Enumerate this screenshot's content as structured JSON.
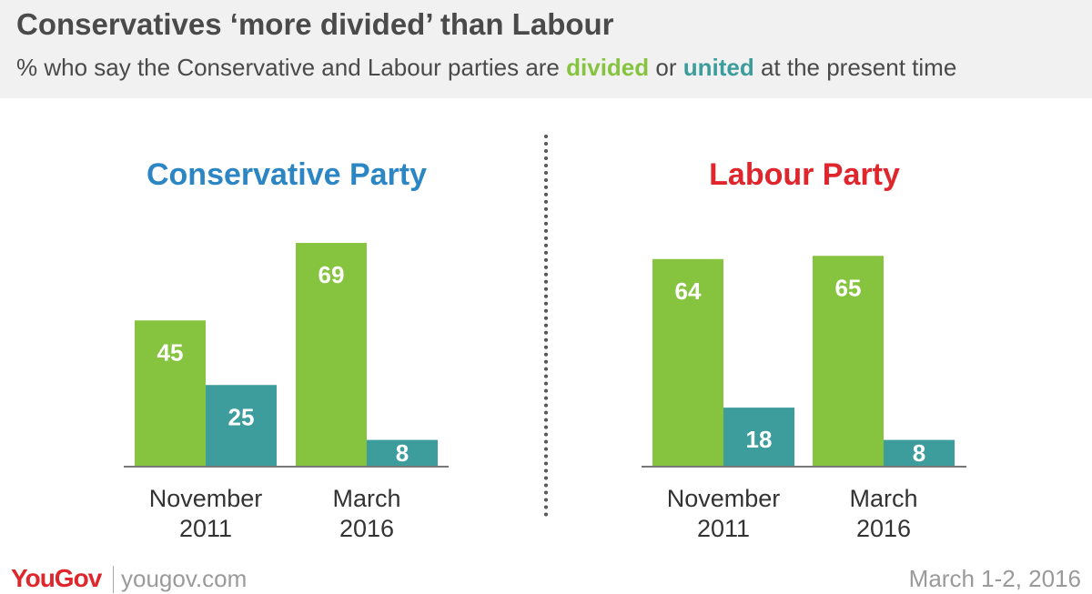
{
  "header": {
    "title": "Conservatives ‘more divided’ than Labour",
    "subtitle_prefix": "% who say the Conservative and Labour parties are ",
    "subtitle_divided": "divided",
    "subtitle_or": " or ",
    "subtitle_united": "united",
    "subtitle_suffix": " at the present time"
  },
  "colors": {
    "divided": "#86c440",
    "united": "#3d9c9c",
    "conservative": "#2d86c4",
    "labour": "#e0262d",
    "header_bg": "#f1f1f1",
    "brand": "#e0262d"
  },
  "chart_data": [
    {
      "type": "bar",
      "title": "Conservative Party",
      "categories": [
        [
          "November",
          "2011"
        ],
        [
          "March",
          "2016"
        ]
      ],
      "series": [
        {
          "name": "divided",
          "values": [
            45,
            69
          ]
        },
        {
          "name": "united",
          "values": [
            25,
            8
          ]
        }
      ],
      "ylim": [
        0,
        100
      ],
      "grid": false,
      "legend": "subtitle"
    },
    {
      "type": "bar",
      "title": "Labour Party",
      "categories": [
        [
          "November",
          "2011"
        ],
        [
          "March",
          "2016"
        ]
      ],
      "series": [
        {
          "name": "divided",
          "values": [
            64,
            65
          ]
        },
        {
          "name": "united",
          "values": [
            18,
            8
          ]
        }
      ],
      "ylim": [
        0,
        100
      ],
      "grid": false,
      "legend": "subtitle"
    }
  ],
  "footer": {
    "logo": "YouGov",
    "site": "yougov.com",
    "date": "March 1-2, 2016"
  }
}
